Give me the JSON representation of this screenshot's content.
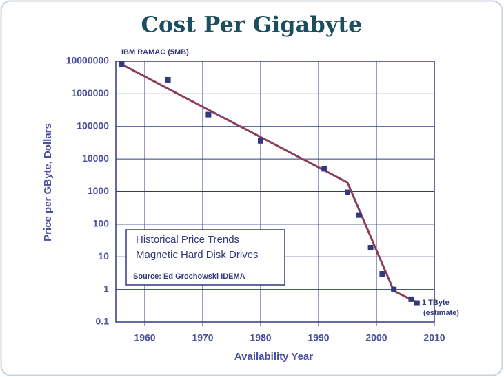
{
  "chart_data": {
    "type": "scatter",
    "title": "Cost Per Gigabyte",
    "xlabel": "Availability Year",
    "ylabel": "Price per GByte, Dollars",
    "log_y": true,
    "grid": true,
    "xlim": [
      1955,
      2010
    ],
    "xticks": [
      1960,
      1970,
      1980,
      1990,
      2000,
      2010
    ],
    "ylim": [
      0.1,
      10000000
    ],
    "yticks": [
      0.1,
      1,
      10,
      100,
      1000,
      10000,
      100000,
      1000000,
      10000000
    ],
    "marker_color": "#33397e",
    "line_color": "#8a3d5c",
    "x": [
      1956,
      1964,
      1971,
      1980,
      1991,
      1995,
      1997,
      1999,
      2001,
      2003,
      2006,
      2007
    ],
    "values": [
      8000000,
      2700000,
      230000,
      36000,
      5000,
      950,
      190,
      19,
      3,
      1,
      0.5,
      0.38
    ],
    "trend": {
      "x": [
        1956,
        1995,
        2003,
        2007
      ],
      "values": [
        8000000,
        1900,
        0.9,
        0.4
      ]
    },
    "annotations": {
      "first": "IBM RAMAC (5MB)",
      "last": [
        "1 TByte",
        "(estimate)"
      ],
      "box": [
        "Historical Price Trends",
        "Magnetic Hard Disk Drives",
        "Source: Ed Grochowski  IDEMA"
      ]
    }
  }
}
